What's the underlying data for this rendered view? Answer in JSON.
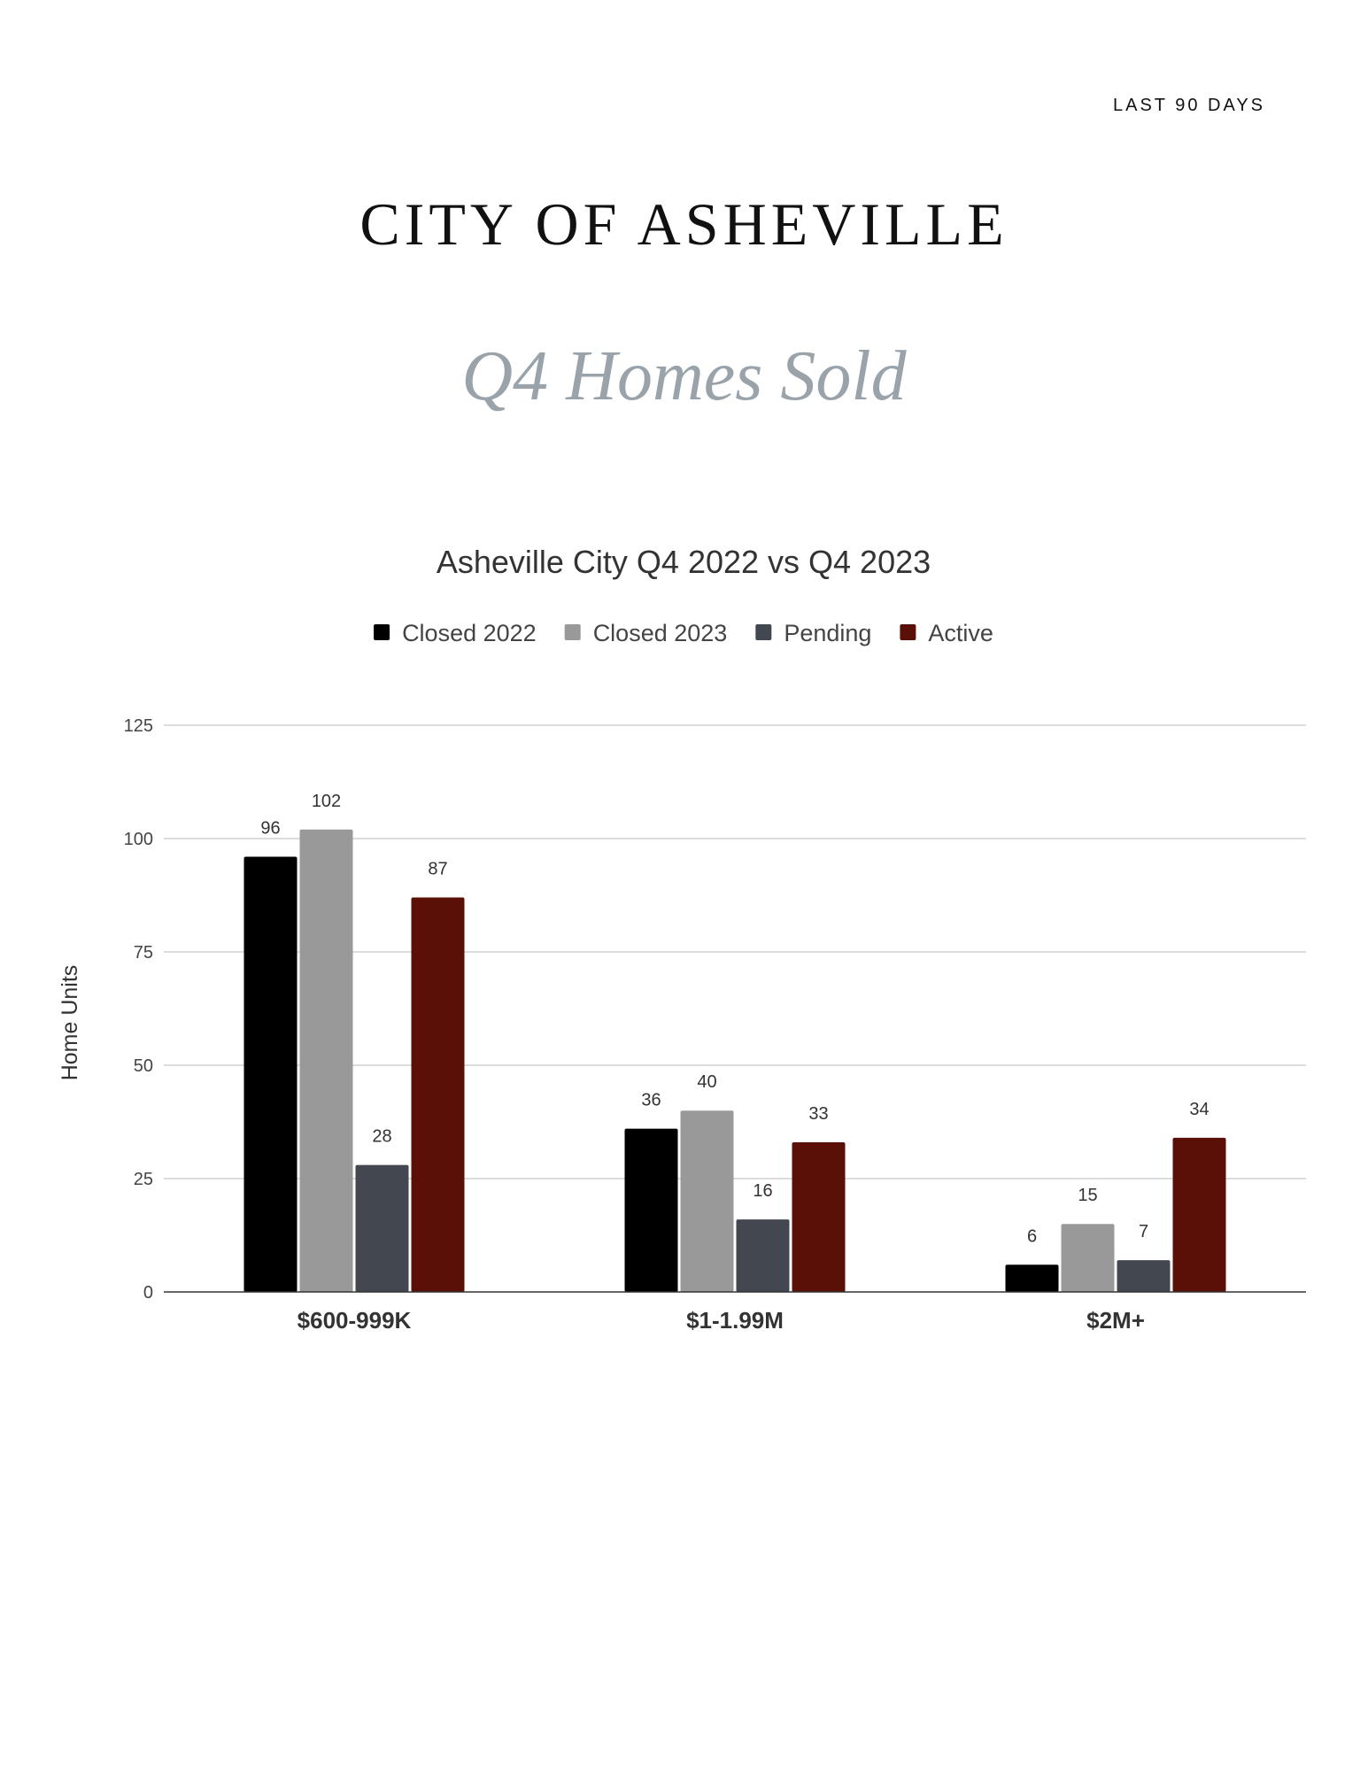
{
  "header": {
    "corner_tag": "LAST 90 DAYS",
    "title": "CITY OF ASHEVILLE",
    "subtitle": "Q4 Homes Sold"
  },
  "chart_data": {
    "type": "bar",
    "title": "Asheville City Q4 2022 vs Q4 2023",
    "xlabel": "",
    "ylabel": "Home Units",
    "ylim": [
      0,
      125
    ],
    "yticks": [
      0,
      25,
      50,
      75,
      100,
      125
    ],
    "grid": true,
    "legend_position": "top",
    "categories": [
      "$600-999K",
      "$1-1.99M",
      "$2M+"
    ],
    "series": [
      {
        "name": "Closed  2022",
        "color": "#000000",
        "values": [
          96,
          36,
          6
        ]
      },
      {
        "name": "Closed  2023",
        "color": "#999999",
        "values": [
          102,
          40,
          15
        ]
      },
      {
        "name": "Pending",
        "color": "#434850",
        "values": [
          28,
          16,
          7
        ]
      },
      {
        "name": "Active",
        "color": "#5a1006",
        "values": [
          87,
          33,
          34
        ]
      }
    ]
  }
}
